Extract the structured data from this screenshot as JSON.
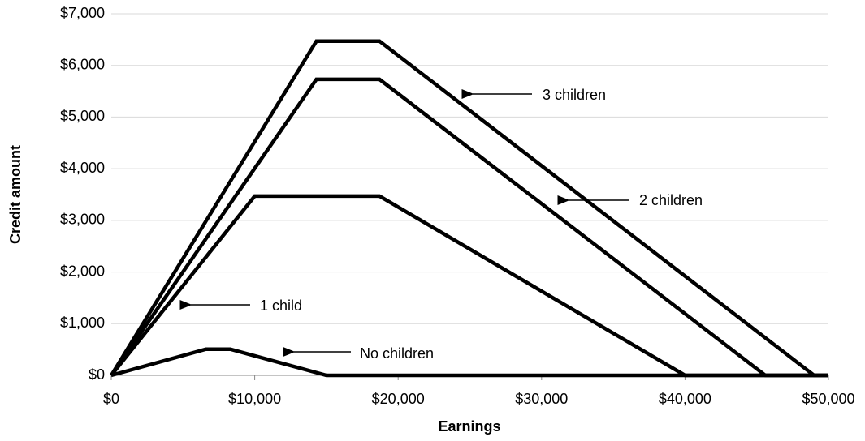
{
  "chart_data": {
    "type": "line",
    "y_label": "Credit amount",
    "x_label": "Earnings",
    "x": [
      0,
      6600,
      8300,
      10000,
      14300,
      15000,
      18700,
      40000,
      45600,
      49000,
      50000
    ],
    "series": [
      {
        "name": "No children",
        "color": "#000000",
        "values": [
          0,
          506,
          506,
          378,
          53,
          0,
          0,
          0,
          0,
          0,
          0
        ]
      },
      {
        "name": "1 child",
        "color": "#000000",
        "values": [
          0,
          2290,
          2880,
          3470,
          3470,
          3470,
          3470,
          0,
          0,
          0,
          0
        ]
      },
      {
        "name": "2 children",
        "color": "#000000",
        "values": [
          0,
          2645,
          3326,
          4007,
          5730,
          5730,
          5730,
          1193,
          0,
          0,
          0
        ]
      },
      {
        "name": "3 children",
        "color": "#000000",
        "values": [
          0,
          2986,
          3755,
          4524,
          6470,
          6470,
          6470,
          1922,
          726,
          0,
          0
        ]
      }
    ],
    "xlim": [
      0,
      50000
    ],
    "xticks": [
      {
        "value": 0,
        "label": "$0"
      },
      {
        "value": 10000,
        "label": "$10,000"
      },
      {
        "value": 20000,
        "label": "$20,000"
      },
      {
        "value": 30000,
        "label": "$30,000"
      },
      {
        "value": 40000,
        "label": "$40,000"
      },
      {
        "value": 50000,
        "label": "$50,000"
      }
    ],
    "ylim": [
      0,
      7000
    ],
    "yticks": [
      {
        "value": 0,
        "label": "$0"
      },
      {
        "value": 1000,
        "label": "$1,000"
      },
      {
        "value": 2000,
        "label": "$2,000"
      },
      {
        "value": 3000,
        "label": "$3,000"
      },
      {
        "value": 4000,
        "label": "$4,000"
      },
      {
        "value": 5000,
        "label": "$5,000"
      },
      {
        "value": 6000,
        "label": "$6,000"
      },
      {
        "value": 7000,
        "label": "$7,000"
      }
    ],
    "grid": true
  }
}
